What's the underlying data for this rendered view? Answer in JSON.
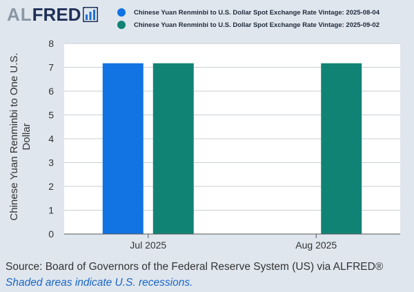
{
  "logo": {
    "prefix": "AL",
    "brand": "FRED"
  },
  "colors": {
    "background": "#dfe6ee",
    "plot_background": "#ffffff",
    "series_1": "#1273e3",
    "series_2": "#118374",
    "grid": "#c8ced6",
    "axis_text": "#333333",
    "note": "#1a66c7"
  },
  "legend": {
    "items": [
      {
        "label": "Chinese Yuan Renminbi to U.S. Dollar Spot Exchange Rate Vintage: 2025-08-04",
        "color": "#1273e3"
      },
      {
        "label": "Chinese Yuan Renminbi to U.S. Dollar Spot Exchange Rate Vintage: 2025-09-02",
        "color": "#118374"
      }
    ]
  },
  "chart_data": {
    "type": "bar",
    "categories": [
      "Jul 2025",
      "Aug 2025"
    ],
    "series": [
      {
        "name": "Chinese Yuan Renminbi to U.S. Dollar Spot Exchange Rate Vintage: 2025-08-04",
        "values": [
          7.17,
          null
        ],
        "color": "#1273e3"
      },
      {
        "name": "Chinese Yuan Renminbi to U.S. Dollar Spot Exchange Rate Vintage: 2025-09-02",
        "values": [
          7.17,
          7.17
        ],
        "color": "#118374"
      }
    ],
    "ylabel_lines": [
      "Chinese Yuan Renminbi to One U.S.",
      "Dollar"
    ],
    "ylim": [
      0,
      8
    ],
    "yticks": [
      0,
      1,
      2,
      3,
      4,
      5,
      6,
      7,
      8
    ],
    "grid": true,
    "legend_position": "top"
  },
  "footer": {
    "source": "Source: Board of Governors of the Federal Reserve System (US) via ALFRED®",
    "note": "Shaded areas indicate U.S. recessions."
  }
}
